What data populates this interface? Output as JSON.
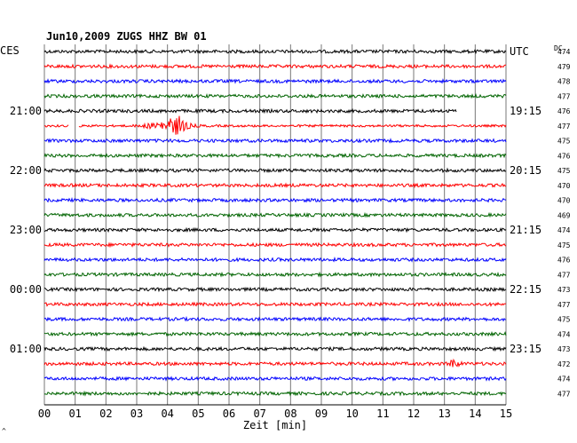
{
  "chart_data": {
    "type": "line",
    "title": "Jun10,2009   ZUGS HHZ BW 01",
    "left_unit_label": "CES",
    "right_unit_label": "UTC",
    "dc_label": "DC",
    "xlabel": "Zeit [min]",
    "x_ticks": [
      "00",
      "01",
      "02",
      "03",
      "04",
      "05",
      "06",
      "07",
      "08",
      "09",
      "10",
      "11",
      "12",
      "13",
      "14",
      "15"
    ],
    "xlim": [
      0,
      15
    ],
    "grid": true,
    "row_colors": [
      "#000000",
      "#ff0000",
      "#0000ff",
      "#006400"
    ],
    "left_time_labels": [
      {
        "row": 4,
        "label": "21:00"
      },
      {
        "row": 8,
        "label": "22:00"
      },
      {
        "row": 12,
        "label": "23:00"
      },
      {
        "row": 16,
        "label": "00:00"
      },
      {
        "row": 20,
        "label": "01:00"
      }
    ],
    "right_time_labels": [
      {
        "row": 0,
        "label": "UTC"
      },
      {
        "row": 4,
        "label": "19:15"
      },
      {
        "row": 8,
        "label": "20:15"
      },
      {
        "row": 12,
        "label": "21:15"
      },
      {
        "row": 16,
        "label": "22:15"
      },
      {
        "row": 20,
        "label": "23:15"
      }
    ],
    "dc_values": [
      "474",
      "479",
      "478",
      "477",
      "476",
      "477",
      "475",
      "476",
      "475",
      "470",
      "470",
      "469",
      "474",
      "475",
      "476",
      "477",
      "473",
      "477",
      "475",
      "474",
      "473",
      "472",
      "474",
      "477"
    ],
    "traces": [
      {
        "row": 0,
        "amplitude": 1.0
      },
      {
        "row": 1,
        "amplitude": 1.0
      },
      {
        "row": 2,
        "amplitude": 1.0
      },
      {
        "row": 3,
        "amplitude": 1.0
      },
      {
        "row": 4,
        "amplitude": 1.0,
        "end_min": 13.4
      },
      {
        "row": 5,
        "amplitude": 0.7,
        "gap": [
          0.8,
          1.1
        ],
        "event": {
          "start": 2.7,
          "peak": 4.4,
          "end": 5.5,
          "amp": 11
        }
      },
      {
        "row": 6,
        "amplitude": 1.0
      },
      {
        "row": 7,
        "amplitude": 1.0
      },
      {
        "row": 8,
        "amplitude": 1.0
      },
      {
        "row": 9,
        "amplitude": 1.0
      },
      {
        "row": 10,
        "amplitude": 1.0
      },
      {
        "row": 11,
        "amplitude": 1.0
      },
      {
        "row": 12,
        "amplitude": 1.0
      },
      {
        "row": 13,
        "amplitude": 1.0
      },
      {
        "row": 14,
        "amplitude": 1.0
      },
      {
        "row": 15,
        "amplitude": 1.0
      },
      {
        "row": 16,
        "amplitude": 1.0
      },
      {
        "row": 17,
        "amplitude": 1.0
      },
      {
        "row": 18,
        "amplitude": 1.0
      },
      {
        "row": 19,
        "amplitude": 1.0
      },
      {
        "row": 20,
        "amplitude": 1.0
      },
      {
        "row": 21,
        "amplitude": 1.0,
        "event": {
          "start": 13.1,
          "peak": 13.25,
          "end": 13.9,
          "amp": 8
        }
      },
      {
        "row": 22,
        "amplitude": 1.0
      },
      {
        "row": 23,
        "amplitude": 1.0
      }
    ],
    "footnote": "^"
  }
}
